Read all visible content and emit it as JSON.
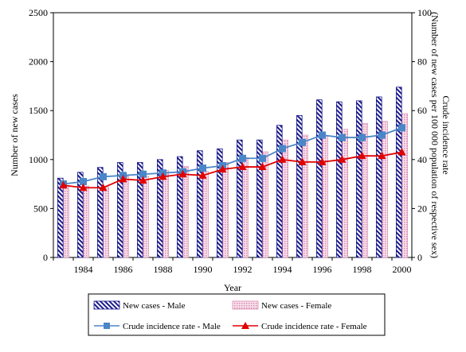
{
  "chart_data": {
    "type": "bar",
    "title": "",
    "xlabel": "Year",
    "ylabel": "Number of new cases",
    "y2label": "Crude incidence rate (Number of new cases per 100 000 population of respective sex)",
    "ylim": [
      0,
      2500
    ],
    "y2lim": [
      0,
      100
    ],
    "yticks": [
      0,
      500,
      1000,
      1500,
      2000,
      2500
    ],
    "y2ticks": [
      0,
      20,
      40,
      60,
      80,
      100
    ],
    "categories": [
      1983,
      1984,
      1985,
      1986,
      1987,
      1988,
      1989,
      1990,
      1991,
      1992,
      1993,
      1994,
      1995,
      1996,
      1997,
      1998,
      1999,
      2000
    ],
    "xtick_labels": [
      "1984",
      "1986",
      "1988",
      "1990",
      "1992",
      "1994",
      "1996",
      "1998",
      "2000"
    ],
    "grid": false,
    "legend_position": "bottom",
    "series": [
      {
        "name": "New cases - Male",
        "kind": "bar",
        "axis": "left",
        "color": "#1a1a8c",
        "values": [
          810,
          870,
          920,
          970,
          970,
          1000,
          1030,
          1090,
          1110,
          1200,
          1200,
          1350,
          1450,
          1610,
          1590,
          1600,
          1640,
          1740
        ]
      },
      {
        "name": "New cases - Female",
        "kind": "bar",
        "axis": "left",
        "color": "#d98cb0",
        "values": [
          720,
          730,
          720,
          830,
          830,
          890,
          930,
          880,
          970,
          1020,
          1080,
          1200,
          1250,
          1240,
          1310,
          1370,
          1390,
          1470
        ]
      },
      {
        "name": "Crude incidence rate - Male",
        "kind": "line",
        "axis": "right",
        "color": "#4a86c8",
        "marker": "square",
        "values": [
          30,
          31,
          33,
          33.5,
          34,
          34.5,
          35,
          36.5,
          37.5,
          40.5,
          40.5,
          44.5,
          47,
          50,
          49,
          49,
          50,
          53
        ]
      },
      {
        "name": "Crude incidence rate - Female",
        "kind": "line",
        "axis": "right",
        "color": "#e00000",
        "marker": "triangle",
        "values": [
          29.5,
          28.5,
          28.5,
          32,
          31.5,
          33,
          34,
          33.5,
          36,
          37,
          37,
          40,
          39,
          39,
          40,
          41.5,
          41.5,
          43
        ]
      }
    ]
  }
}
